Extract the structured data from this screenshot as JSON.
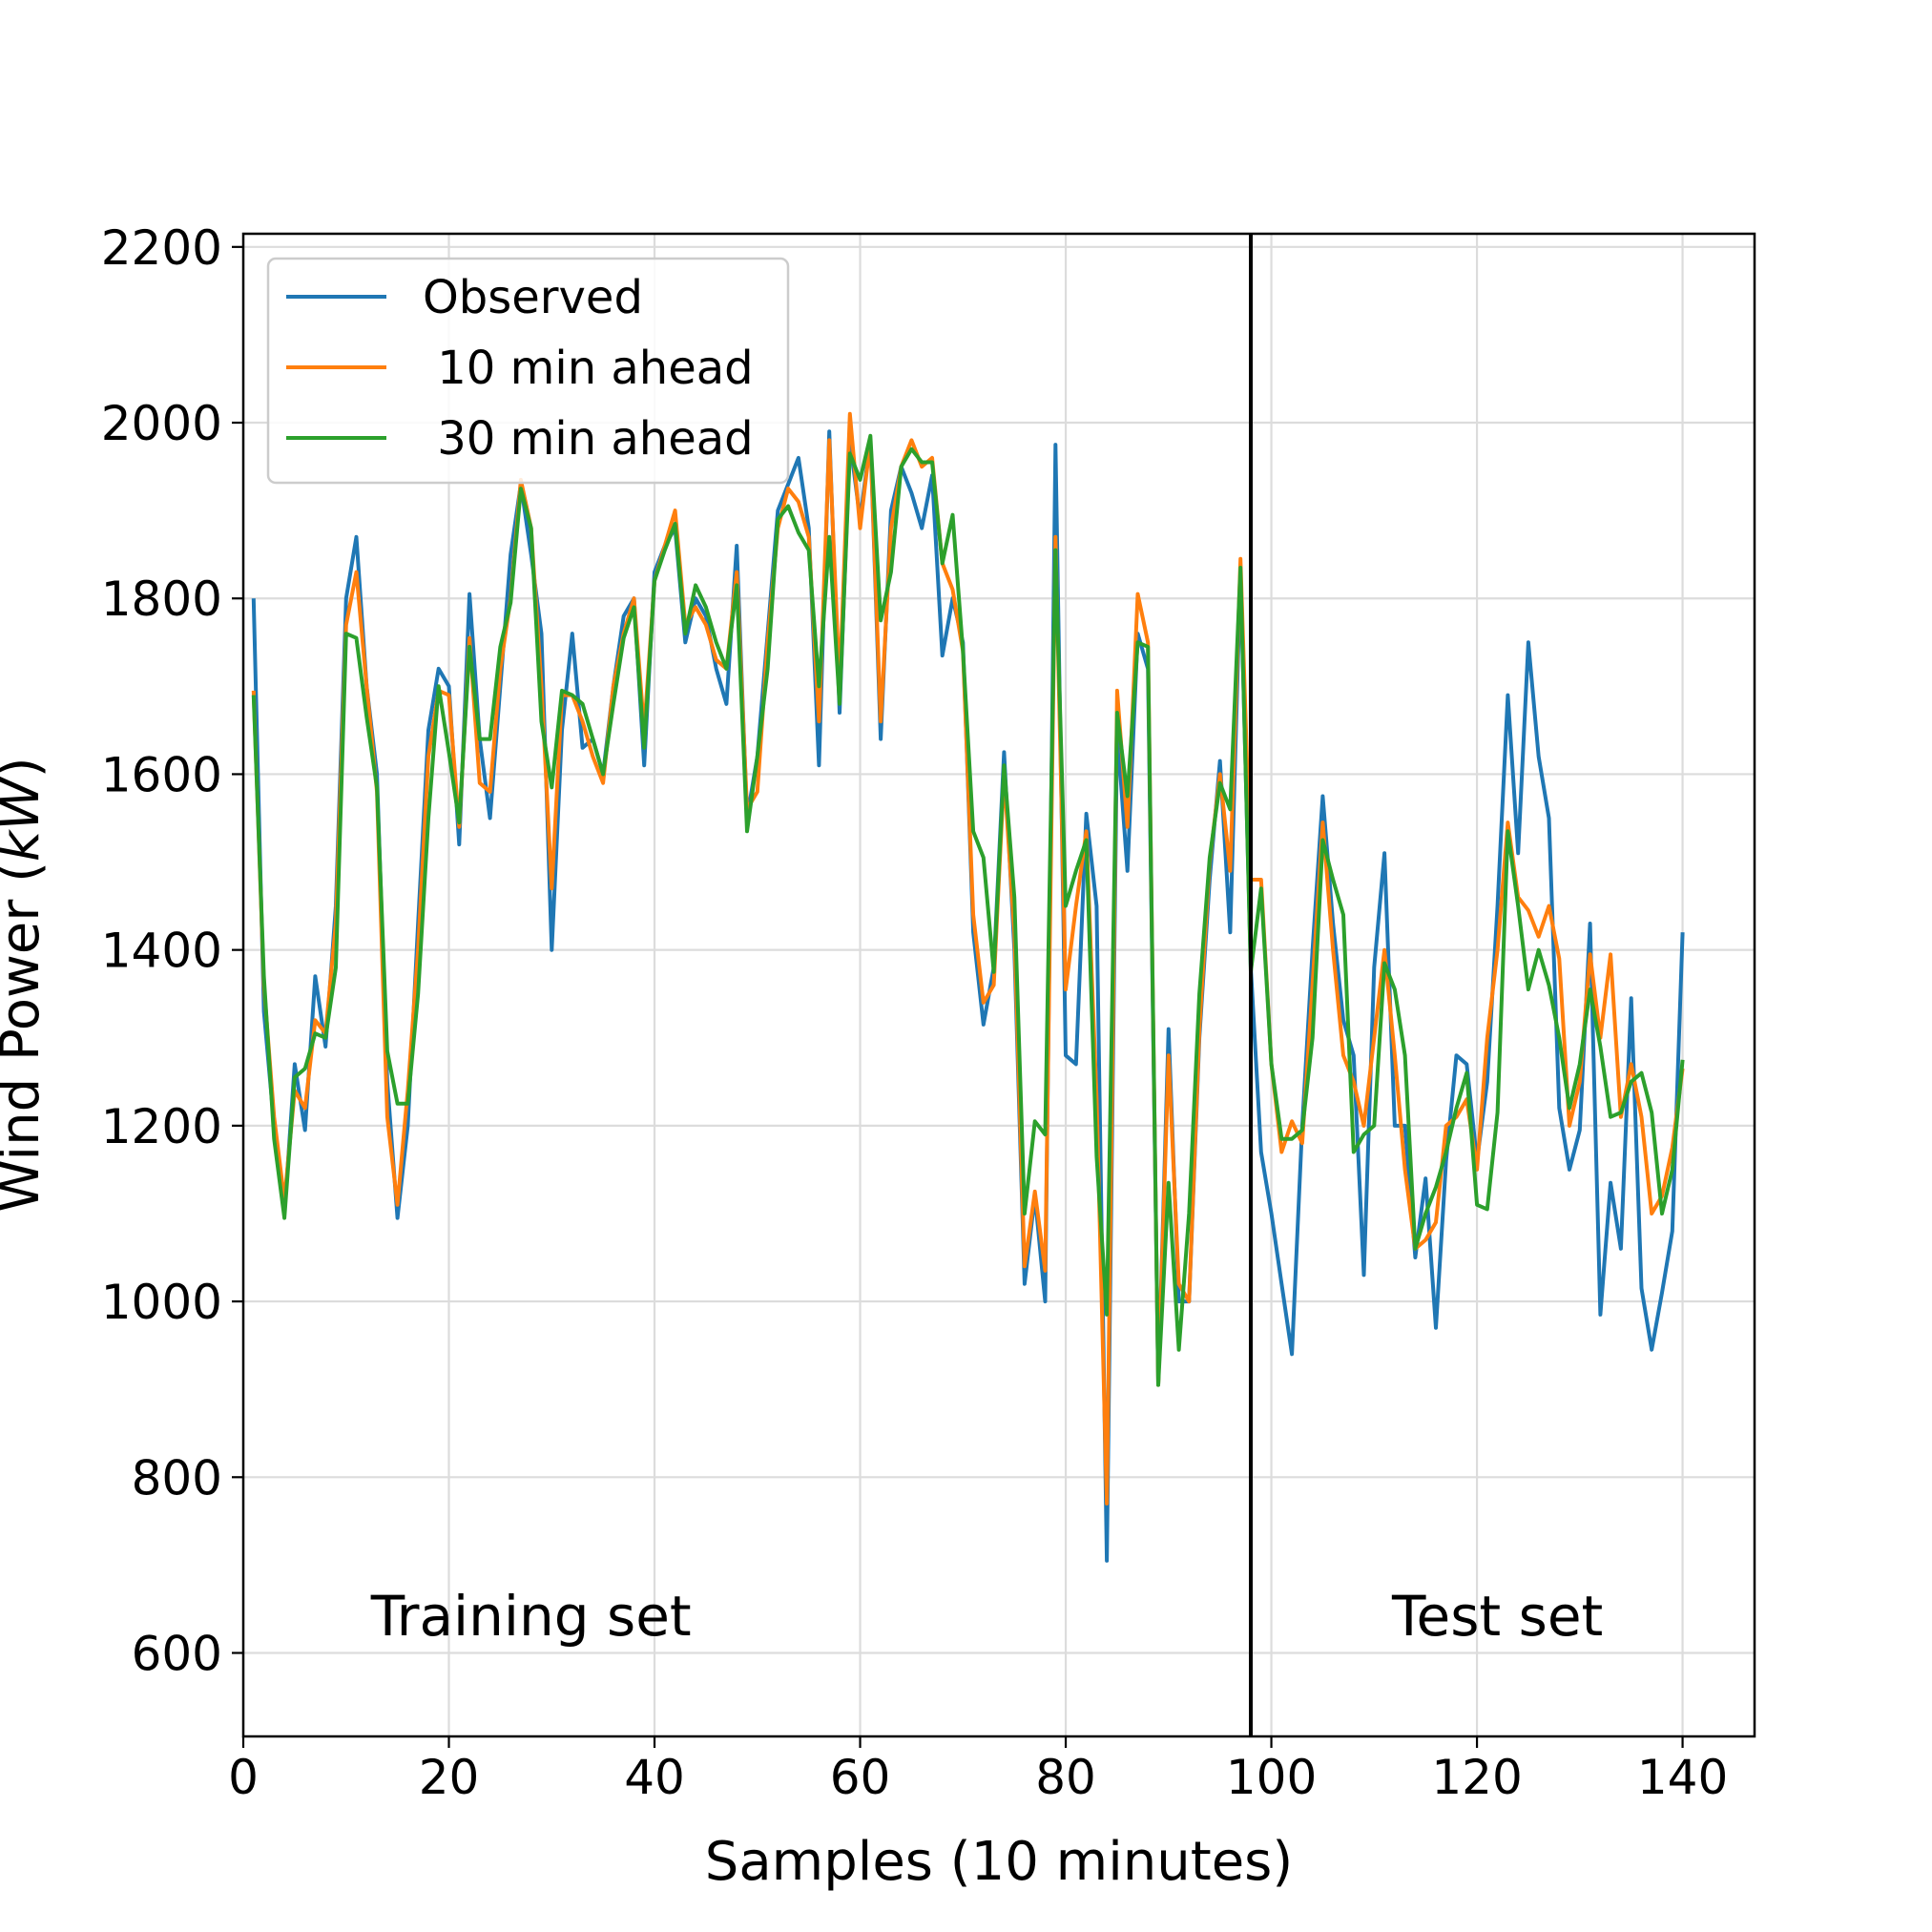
{
  "chart_data": {
    "type": "line",
    "title": "",
    "xlabel": "Samples (10 minutes)",
    "ylabel_main": "Wind Power (",
    "ylabel_unit": "kW",
    "ylabel_close": ")",
    "xlim": [
      0,
      147
    ],
    "ylim": [
      505,
      2215
    ],
    "xticks": [
      0,
      20,
      40,
      60,
      80,
      100,
      120,
      140
    ],
    "yticks": [
      600,
      800,
      1000,
      1200,
      1400,
      1600,
      1800,
      2000,
      2200
    ],
    "grid": true,
    "legend_position": "upper left",
    "divider_x": 98,
    "annotations": [
      {
        "text": "Training set",
        "x": 28,
        "y": 620
      },
      {
        "text": "Test set",
        "x": 122,
        "y": 620
      }
    ],
    "series": [
      {
        "name": "Observed",
        "color": "#1f77b4",
        "x_start": 1,
        "values": [
          1800,
          1330,
          1200,
          1100,
          1270,
          1195,
          1370,
          1290,
          1450,
          1800,
          1870,
          1700,
          1600,
          1250,
          1095,
          1200,
          1430,
          1650,
          1720,
          1700,
          1520,
          1805,
          1640,
          1550,
          1700,
          1850,
          1930,
          1850,
          1760,
          1400,
          1650,
          1760,
          1630,
          1640,
          1600,
          1700,
          1780,
          1800,
          1610,
          1830,
          1860,
          1880,
          1750,
          1800,
          1780,
          1720,
          1680,
          1860,
          1550,
          1620,
          1760,
          1900,
          1930,
          1960,
          1880,
          1610,
          1990,
          1670,
          1980,
          1890,
          1980,
          1640,
          1900,
          1950,
          1920,
          1880,
          1940,
          1735,
          1800,
          1750,
          1420,
          1315,
          1380,
          1625,
          1400,
          1020,
          1120,
          1000,
          1975,
          1280,
          1270,
          1555,
          1450,
          705,
          1650,
          1490,
          1760,
          1720,
          905,
          1310,
          1000,
          1000,
          1300,
          1480,
          1615,
          1420,
          1830,
          1380,
          1170,
          1100,
          1020,
          940,
          1200,
          1400,
          1575,
          1430,
          1320,
          1280,
          1030,
          1380,
          1510,
          1200,
          1200,
          1050,
          1140,
          970,
          1160,
          1280,
          1270,
          1160,
          1250,
          1450,
          1690,
          1510,
          1750,
          1620,
          1550,
          1220,
          1150,
          1195,
          1430,
          985,
          1135,
          1060,
          1345,
          1015,
          945,
          1010,
          1080,
          1420
        ]
      },
      {
        "name": " 10 min ahead",
        "color": "#ff7f0e",
        "x_start": 1,
        "values": [
          1695,
          1360,
          1210,
          1115,
          1240,
          1220,
          1320,
          1305,
          1430,
          1770,
          1830,
          1700,
          1580,
          1210,
          1110,
          1240,
          1400,
          1620,
          1695,
          1690,
          1540,
          1755,
          1590,
          1580,
          1720,
          1800,
          1935,
          1880,
          1700,
          1470,
          1690,
          1690,
          1660,
          1620,
          1590,
          1700,
          1760,
          1800,
          1650,
          1820,
          1860,
          1900,
          1770,
          1790,
          1770,
          1730,
          1720,
          1830,
          1560,
          1580,
          1750,
          1880,
          1925,
          1910,
          1870,
          1660,
          1980,
          1700,
          2010,
          1880,
          1980,
          1660,
          1880,
          1950,
          1980,
          1950,
          1960,
          1840,
          1810,
          1740,
          1440,
          1340,
          1360,
          1600,
          1420,
          1040,
          1125,
          1035,
          1870,
          1355,
          1450,
          1535,
          1230,
          770,
          1695,
          1540,
          1805,
          1750,
          905,
          1280,
          1020,
          1000,
          1310,
          1500,
          1600,
          1490,
          1845,
          1480,
          1480,
          1270,
          1170,
          1205,
          1180,
          1360,
          1545,
          1400,
          1280,
          1250,
          1200,
          1300,
          1400,
          1280,
          1150,
          1060,
          1070,
          1090,
          1200,
          1210,
          1230,
          1150,
          1300,
          1400,
          1545,
          1460,
          1445,
          1415,
          1450,
          1390,
          1200,
          1250,
          1395,
          1300,
          1395,
          1210,
          1270,
          1210,
          1100,
          1120,
          1175,
          1265
        ]
      },
      {
        "name": " 30 min ahead",
        "color": "#2ca02c",
        "x_start": 1,
        "values": [
          1690,
          1370,
          1185,
          1095,
          1255,
          1265,
          1305,
          1300,
          1380,
          1760,
          1755,
          1665,
          1585,
          1285,
          1225,
          1225,
          1350,
          1550,
          1700,
          1625,
          1545,
          1745,
          1640,
          1640,
          1745,
          1795,
          1925,
          1880,
          1660,
          1585,
          1695,
          1690,
          1680,
          1640,
          1600,
          1680,
          1755,
          1790,
          1630,
          1820,
          1855,
          1885,
          1760,
          1815,
          1790,
          1750,
          1720,
          1815,
          1535,
          1620,
          1720,
          1890,
          1905,
          1875,
          1855,
          1700,
          1870,
          1680,
          1965,
          1935,
          1985,
          1775,
          1830,
          1950,
          1970,
          1955,
          1955,
          1840,
          1895,
          1740,
          1535,
          1505,
          1375,
          1610,
          1460,
          1100,
          1205,
          1190,
          1855,
          1450,
          1490,
          1525,
          1165,
          985,
          1670,
          1575,
          1750,
          1745,
          905,
          1135,
          945,
          1100,
          1350,
          1505,
          1590,
          1560,
          1835,
          1375,
          1470,
          1270,
          1185,
          1185,
          1195,
          1300,
          1525,
          1480,
          1440,
          1170,
          1190,
          1200,
          1385,
          1355,
          1280,
          1060,
          1100,
          1130,
          1170,
          1220,
          1260,
          1110,
          1105,
          1215,
          1535,
          1450,
          1355,
          1400,
          1360,
          1300,
          1220,
          1270,
          1355,
          1290,
          1210,
          1215,
          1250,
          1260,
          1215,
          1100,
          1150,
          1275
        ]
      }
    ]
  }
}
